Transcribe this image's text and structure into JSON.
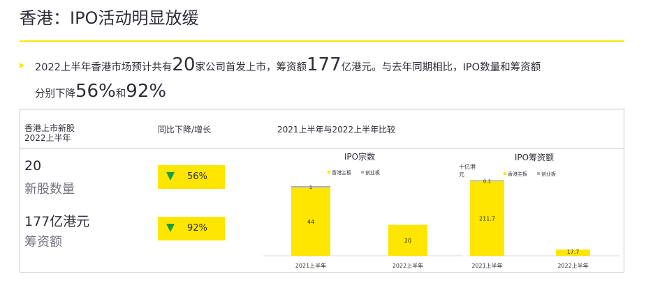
{
  "title": "香港：IPO活动明显放缓",
  "bullet": {
    "p1": "2022上半年香港市场预计共有",
    "n1": "20",
    "p2": "家公司首发上市，筹资额",
    "n2": "177",
    "p3": "亿港元。与去年同期相比，IPO数量和筹资额",
    "p4": "分别下降",
    "n3": "56%",
    "p5": "和",
    "n4": "92%"
  },
  "panel": {
    "col1_header": "香港上市新股\n2022上半年",
    "col2_header": "同比下降/增长",
    "col3_header": "2021上半年与2022上半年比较",
    "metrics": [
      {
        "value": "20",
        "label": "新股数量",
        "change": "56%",
        "direction": "down"
      },
      {
        "value": "177亿港元",
        "label": "筹资额",
        "change": "92%",
        "direction": "down"
      }
    ]
  },
  "colors": {
    "accent": "#ffe600",
    "down": "#1a9e3a",
    "secondary": "#b3b3b3",
    "text": "#2e2e38",
    "muted": "#747480"
  },
  "chart_data": [
    {
      "type": "bar",
      "stacked": true,
      "title": "IPO宗数",
      "unit": "",
      "categories": [
        "2021上半年",
        "2022上半年"
      ],
      "legend": [
        "香港主板",
        "创业板"
      ],
      "series": [
        {
          "name": "香港主板",
          "values": [
            44,
            20
          ],
          "labels": [
            "44",
            "20"
          ],
          "color": "#ffe600"
        },
        {
          "name": "创业板",
          "values": [
            1,
            0
          ],
          "labels": [
            "1",
            ""
          ],
          "color": "#b3b3b3"
        }
      ]
    },
    {
      "type": "bar",
      "stacked": true,
      "title": "IPO筹资额",
      "unit": "十亿港\n元",
      "categories": [
        "2021上半年",
        "2022上半年"
      ],
      "legend": [
        "香港主板",
        "创业板"
      ],
      "series": [
        {
          "name": "香港主板",
          "values": [
            211.7,
            17.7
          ],
          "labels": [
            "211.7",
            "17.7"
          ],
          "color": "#ffe600"
        },
        {
          "name": "创业板",
          "values": [
            0.1,
            0
          ],
          "labels": [
            "0.1",
            ""
          ],
          "color": "#b3b3b3"
        }
      ]
    }
  ]
}
